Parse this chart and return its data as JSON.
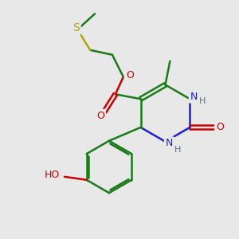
{
  "bg_color": "#e8e8e8",
  "atom_colors": {
    "C": "#1a7a1a",
    "N": "#2020cc",
    "O": "#cc0000",
    "S": "#aaaa00",
    "H": "#607080"
  },
  "bond_color": "#1a7a1a",
  "line_width": 1.8,
  "fig_size": [
    3.0,
    3.0
  ],
  "dpi": 100
}
